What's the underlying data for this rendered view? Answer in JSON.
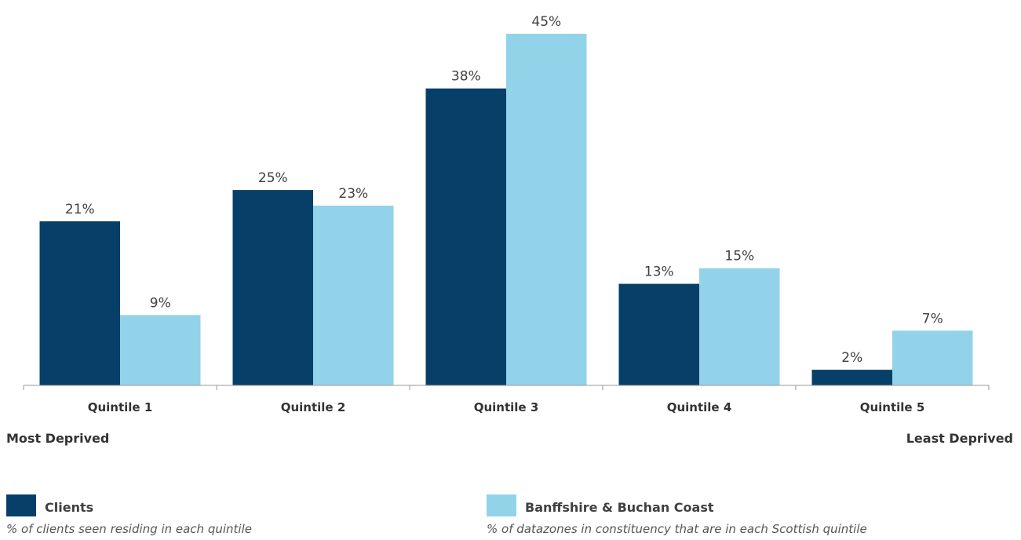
{
  "chart_data": {
    "type": "bar",
    "title": "",
    "xlabel": "",
    "ylabel": "",
    "categories": [
      "Quintile 1",
      "Quintile 2",
      "Quintile 3",
      "Quintile 4",
      "Quintile 5"
    ],
    "series": [
      {
        "name": "Clients",
        "description": "% of clients seen residing in each quintile",
        "color": "#063f68",
        "values": [
          21,
          25,
          38,
          13,
          2
        ],
        "labels": [
          "21%",
          "25%",
          "38%",
          "13%",
          "2%"
        ]
      },
      {
        "name": "Banffshire & Buchan Coast",
        "description": "% of datazones in constituency that are in each Scottish quintile",
        "color": "#92d3ea",
        "values": [
          9,
          23,
          45,
          15,
          7
        ],
        "labels": [
          "9%",
          "23%",
          "45%",
          "15%",
          "7%"
        ]
      }
    ],
    "ylim": [
      0,
      45
    ],
    "grid": false,
    "legend_position": "bottom",
    "axis_end_labels": {
      "left": "Most Deprived",
      "right": "Least Deprived"
    }
  }
}
